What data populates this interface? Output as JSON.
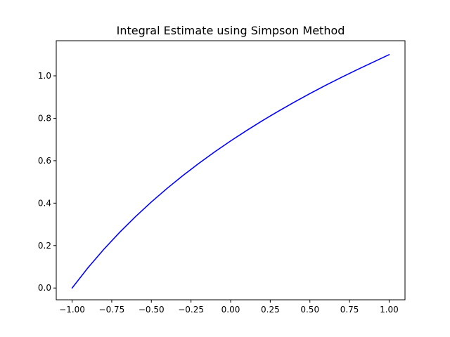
{
  "chart_data": {
    "type": "line",
    "title": "Integral Estimate using Simpson Method",
    "xlabel": "",
    "ylabel": "",
    "xlim": [
      -1.1,
      1.1
    ],
    "ylim": [
      -0.0555,
      1.1655
    ],
    "grid": false,
    "series": [
      {
        "color": "#0000ff",
        "x": [
          -1.0,
          -0.9,
          -0.8,
          -0.7,
          -0.6,
          -0.5,
          -0.4,
          -0.3,
          -0.2,
          -0.1,
          0.0,
          0.1,
          0.2,
          0.3,
          0.4,
          0.5,
          0.6,
          0.7,
          0.8,
          0.9,
          1.0
        ],
        "y": [
          0.0,
          0.0953,
          0.1823,
          0.2624,
          0.3365,
          0.4055,
          0.47,
          0.5306,
          0.5878,
          0.6419,
          0.6931,
          0.7419,
          0.7885,
          0.8329,
          0.8755,
          0.9163,
          0.9555,
          0.9933,
          1.0296,
          1.0647,
          1.1
        ]
      }
    ],
    "xticks": [
      {
        "value": -1.0,
        "label": "−1.00"
      },
      {
        "value": -0.75,
        "label": "−0.75"
      },
      {
        "value": -0.5,
        "label": "−0.50"
      },
      {
        "value": -0.25,
        "label": "−0.25"
      },
      {
        "value": 0.0,
        "label": "0.00"
      },
      {
        "value": 0.25,
        "label": "0.25"
      },
      {
        "value": 0.5,
        "label": "0.50"
      },
      {
        "value": 0.75,
        "label": "0.75"
      },
      {
        "value": 1.0,
        "label": "1.00"
      }
    ],
    "yticks": [
      {
        "value": 0.0,
        "label": "0.0"
      },
      {
        "value": 0.2,
        "label": "0.2"
      },
      {
        "value": 0.4,
        "label": "0.4"
      },
      {
        "value": 0.6,
        "label": "0.6"
      },
      {
        "value": 0.8,
        "label": "0.8"
      },
      {
        "value": 1.0,
        "label": "1.0"
      }
    ]
  }
}
